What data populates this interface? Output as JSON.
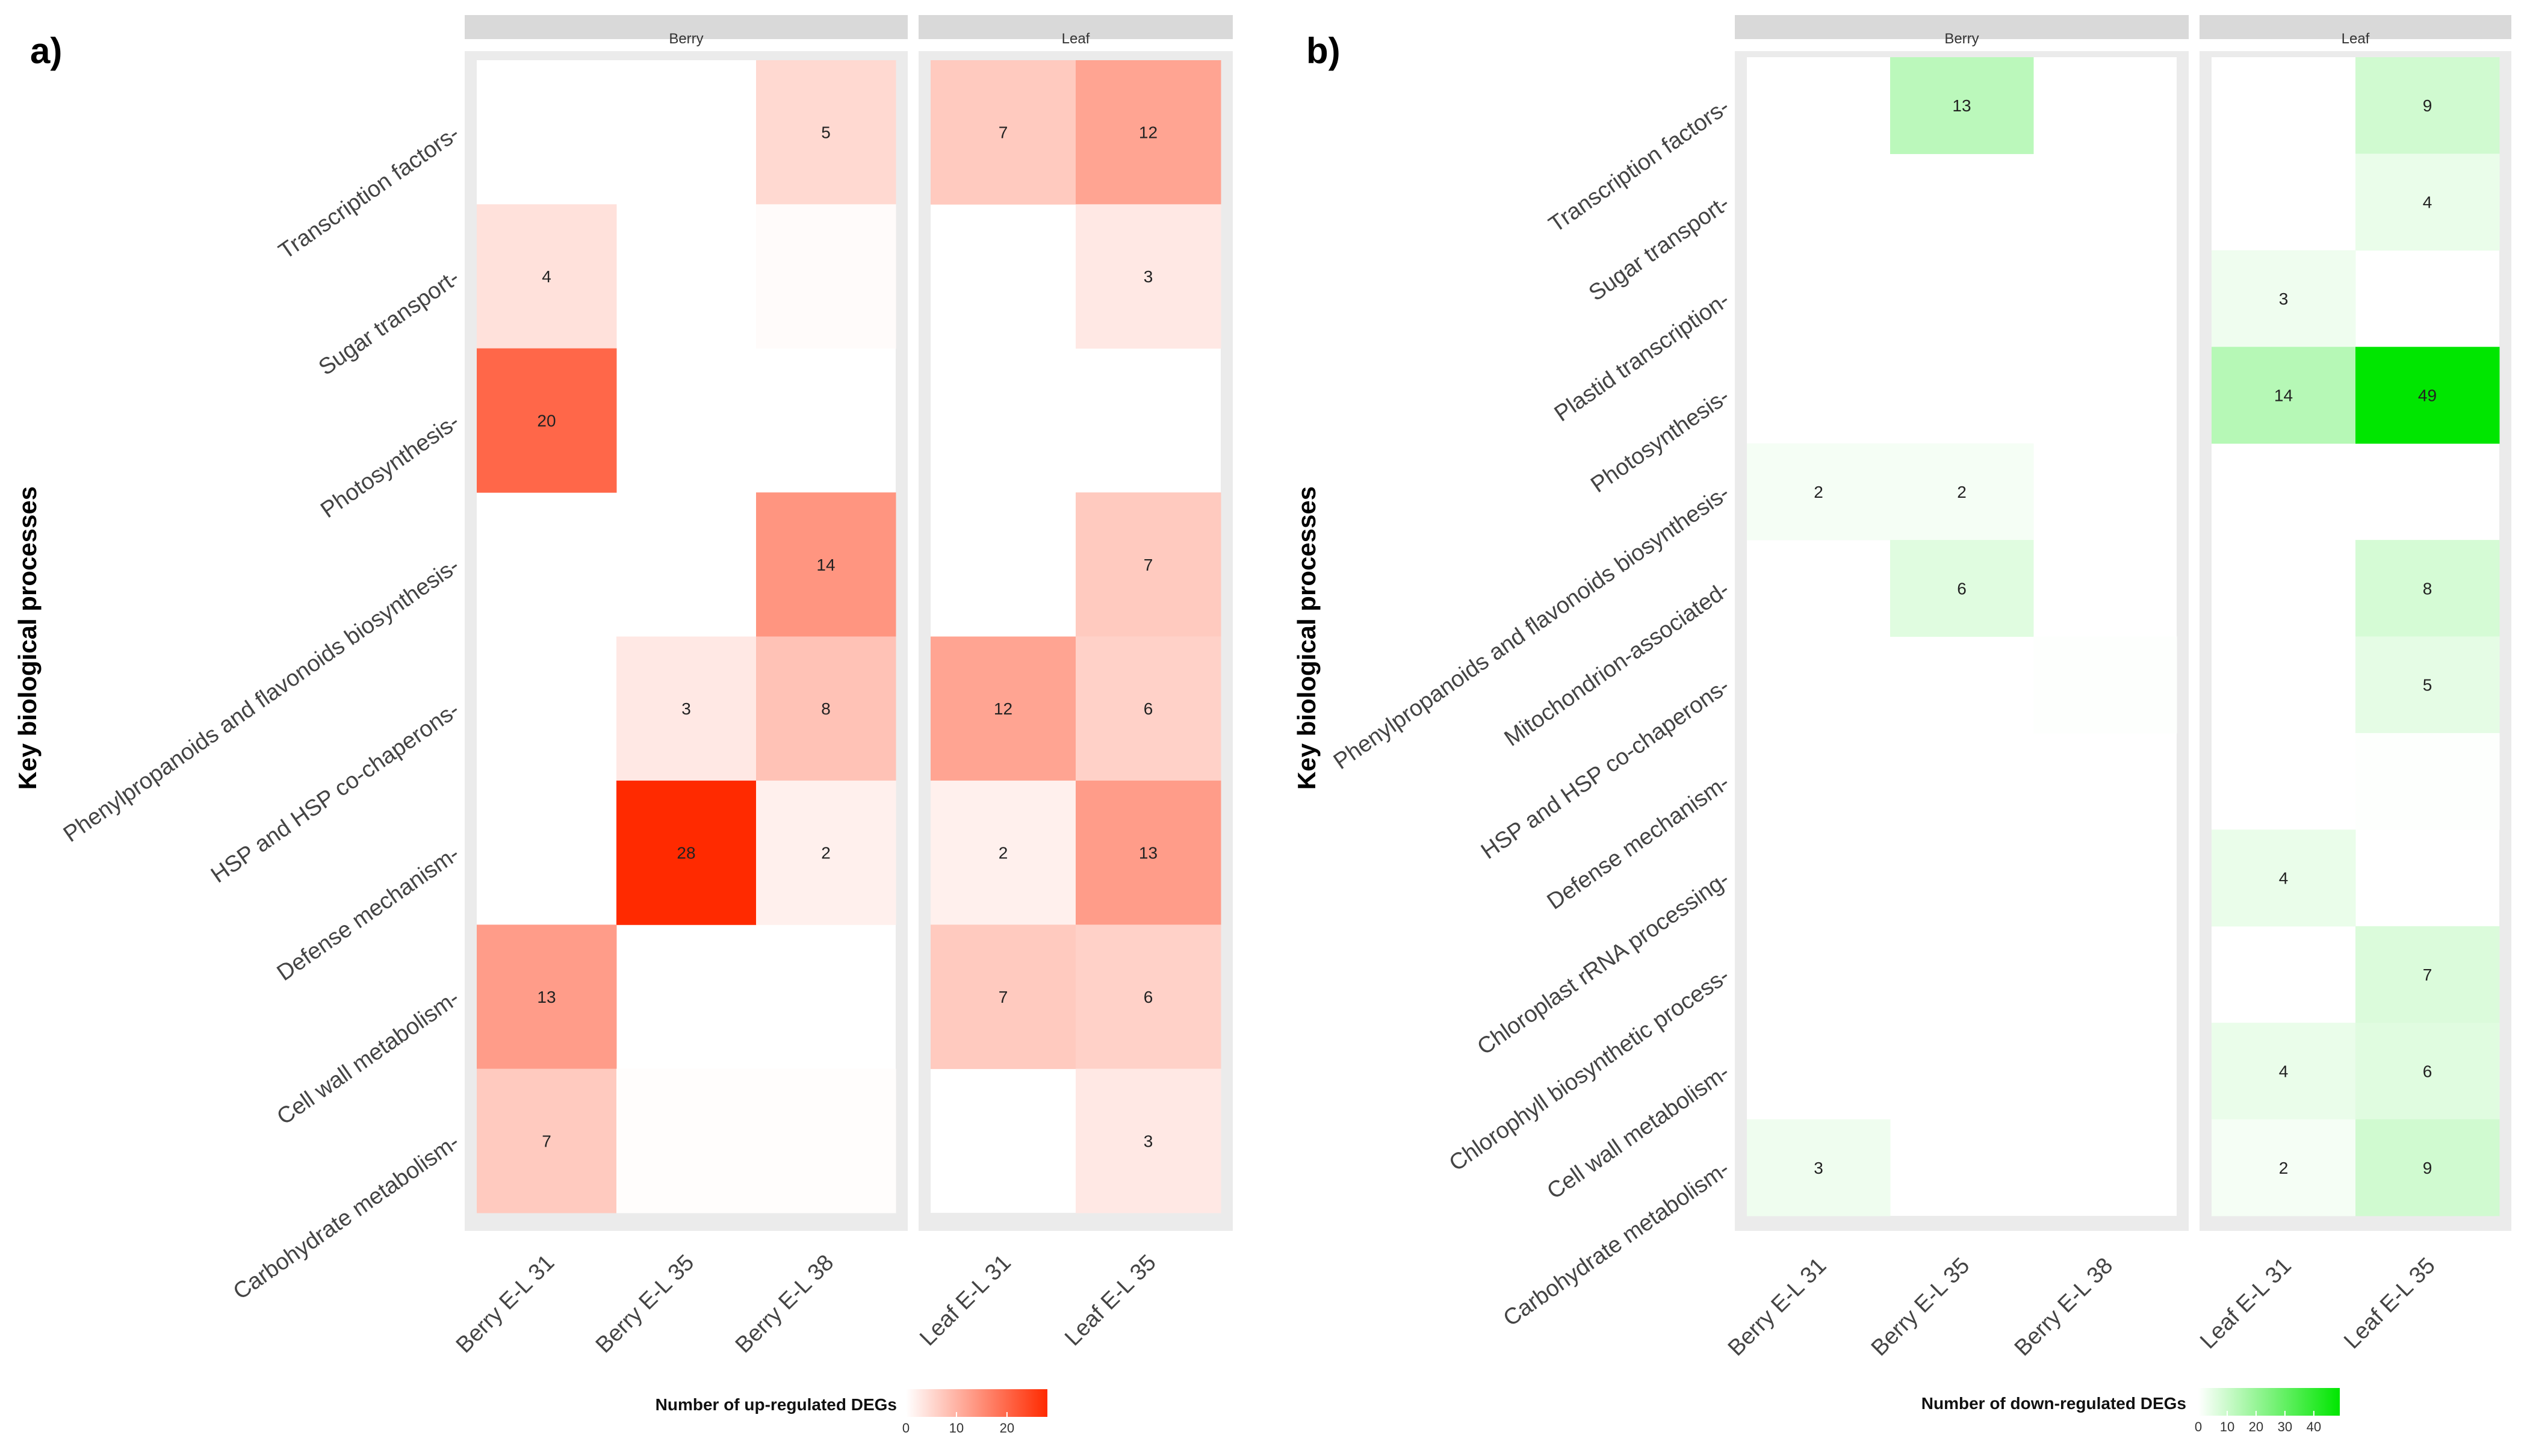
{
  "chart_data": [
    {
      "panel": "a)",
      "type": "heatmap",
      "ylabel": "Key biological processes",
      "legend": {
        "title": "Number of up-regulated DEGs",
        "ticks": [
          "0",
          "10",
          "20"
        ],
        "min": 0,
        "max": 28,
        "low_color": "#ffffff",
        "high_color": "#ff2a00"
      },
      "categories_y": [
        "Transcription factors",
        "Sugar transport",
        "Photosynthesis",
        "Phenylpropanoids and flavonoids biosynthesis",
        "HSP and HSP co-chaperons",
        "Defense mechanism",
        "Cell wall metabolism",
        "Carbohydrate metabolism"
      ],
      "facets": [
        {
          "name": "Berry",
          "columns": [
            "Berry E-L 31",
            "Berry E-L 35",
            "Berry E-L 38"
          ],
          "cells": [
            [
              null,
              null,
              5
            ],
            [
              4,
              null,
              0.5
            ],
            [
              20,
              null,
              null
            ],
            [
              null,
              null,
              14
            ],
            [
              null,
              3,
              8
            ],
            [
              null,
              28,
              2
            ],
            [
              13,
              null,
              null
            ],
            [
              7,
              0.3,
              0.3
            ]
          ]
        },
        {
          "name": "Leaf",
          "columns": [
            "Leaf E-L 31",
            "Leaf E-L 35"
          ],
          "cells": [
            [
              7,
              12
            ],
            [
              null,
              3
            ],
            [
              null,
              null
            ],
            [
              null,
              7
            ],
            [
              12,
              6
            ],
            [
              2,
              13
            ],
            [
              7,
              6
            ],
            [
              null,
              3
            ]
          ]
        }
      ]
    },
    {
      "panel": "b)",
      "type": "heatmap",
      "ylabel": "Key biological processes",
      "legend": {
        "title": "Number of down-regulated DEGs",
        "ticks": [
          "0",
          "10",
          "20",
          "30",
          "40"
        ],
        "min": 0,
        "max": 49,
        "low_color": "#ffffff",
        "high_color": "#00e600"
      },
      "categories_y": [
        "Transcription factors",
        "Sugar transport",
        "Plastid transcription",
        "Photosynthesis",
        "Phenylpropanoids and flavonoids biosynthesis",
        "Mitochondrion-associated",
        "HSP and HSP co-chaperons",
        "Defense mechanism",
        "Chloroplast rRNA processing",
        "Chlorophyll biosynthetic process",
        "Cell wall metabolism",
        "Carbohydrate metabolism"
      ],
      "facets": [
        {
          "name": "Berry",
          "columns": [
            "Berry E-L 31",
            "Berry E-L 35",
            "Berry E-L 38"
          ],
          "cells": [
            [
              null,
              13,
              null
            ],
            [
              null,
              null,
              null
            ],
            [
              null,
              null,
              null
            ],
            [
              null,
              null,
              null
            ],
            [
              2,
              2,
              null
            ],
            [
              null,
              6,
              null
            ],
            [
              null,
              null,
              0.3
            ],
            [
              null,
              null,
              null
            ],
            [
              null,
              null,
              null
            ],
            [
              null,
              null,
              null
            ],
            [
              null,
              null,
              null
            ],
            [
              3,
              null,
              null
            ]
          ]
        },
        {
          "name": "Leaf",
          "columns": [
            "Leaf E-L 31",
            "Leaf E-L 35"
          ],
          "cells": [
            [
              null,
              9
            ],
            [
              null,
              4
            ],
            [
              3,
              null
            ],
            [
              14,
              49
            ],
            [
              null,
              null
            ],
            [
              null,
              8
            ],
            [
              null,
              5
            ],
            [
              null,
              0.3
            ],
            [
              4,
              null
            ],
            [
              null,
              7
            ],
            [
              4,
              6
            ],
            [
              2,
              9
            ]
          ]
        }
      ]
    }
  ]
}
